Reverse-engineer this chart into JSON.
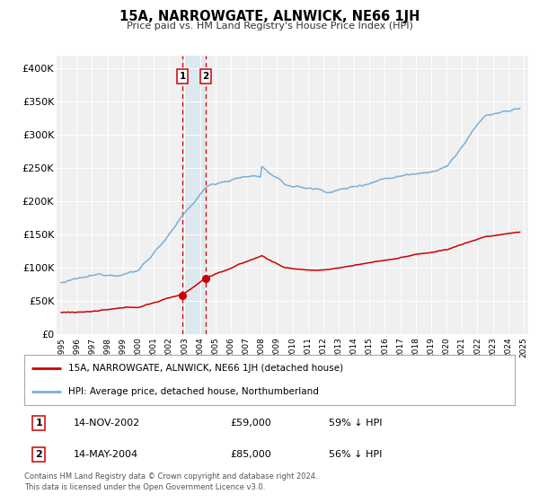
{
  "title": "15A, NARROWGATE, ALNWICK, NE66 1JH",
  "subtitle": "Price paid vs. HM Land Registry's House Price Index (HPI)",
  "ylim": [
    0,
    420000
  ],
  "yticks": [
    0,
    50000,
    100000,
    150000,
    200000,
    250000,
    300000,
    350000,
    400000
  ],
  "ytick_labels": [
    "£0",
    "£50K",
    "£100K",
    "£150K",
    "£200K",
    "£250K",
    "£300K",
    "£350K",
    "£400K"
  ],
  "xlim_start": 1994.7,
  "xlim_end": 2025.3,
  "xticks": [
    1995,
    1996,
    1997,
    1998,
    1999,
    2000,
    2001,
    2002,
    2003,
    2004,
    2005,
    2006,
    2007,
    2008,
    2009,
    2010,
    2011,
    2012,
    2013,
    2014,
    2015,
    2016,
    2017,
    2018,
    2019,
    2020,
    2021,
    2022,
    2023,
    2024,
    2025
  ],
  "transaction1_date": 2002.87,
  "transaction1_price": 59000,
  "transaction1_label": "1",
  "transaction1_date_str": "14-NOV-2002",
  "transaction1_price_str": "£59,000",
  "transaction1_pct": "59% ↓ HPI",
  "transaction2_date": 2004.37,
  "transaction2_price": 85000,
  "transaction2_label": "2",
  "transaction2_date_str": "14-MAY-2004",
  "transaction2_price_str": "£85,000",
  "transaction2_pct": "56% ↓ HPI",
  "red_color": "#cc0000",
  "blue_color": "#7bafd4",
  "span_color": "#c8dff0",
  "legend_label_red": "15A, NARROWGATE, ALNWICK, NE66 1JH (detached house)",
  "legend_label_blue": "HPI: Average price, detached house, Northumberland",
  "footnote1": "Contains HM Land Registry data © Crown copyright and database right 2024.",
  "footnote2": "This data is licensed under the Open Government Licence v3.0.",
  "background_color": "#ffffff",
  "plot_bg_color": "#f0f0f0",
  "grid_color": "#ffffff"
}
